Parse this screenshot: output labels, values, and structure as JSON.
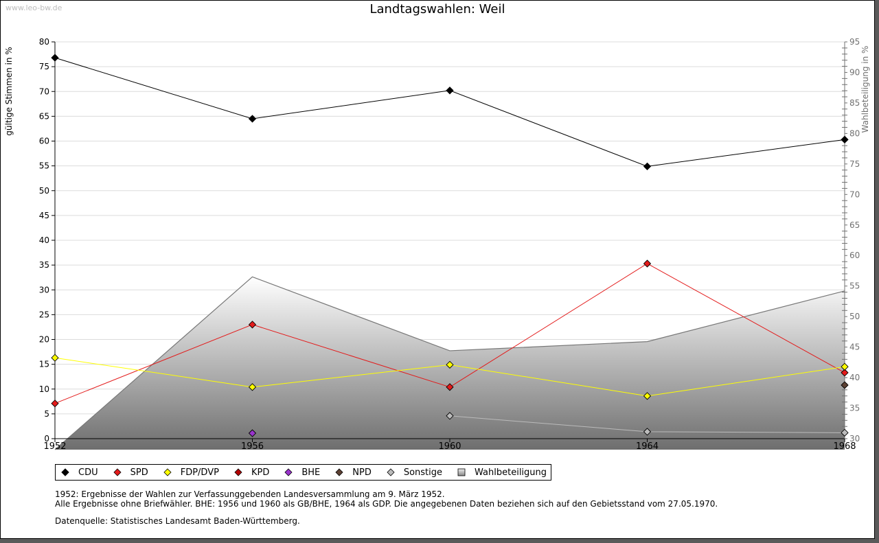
{
  "watermark": "www.leo-bw.de",
  "title": "Landtagswahlen: Weil",
  "legend": [
    {
      "label": "CDU",
      "color": "#000000",
      "shape": "diamond"
    },
    {
      "label": "SPD",
      "color": "#e31a1a",
      "shape": "diamond"
    },
    {
      "label": "FDP/DVP",
      "color": "#ffff00",
      "shape": "diamond"
    },
    {
      "label": "KPD",
      "color": "#b30000",
      "shape": "diamond"
    },
    {
      "label": "BHE",
      "color": "#9933cc",
      "shape": "diamond"
    },
    {
      "label": "NPD",
      "color": "#5c4033",
      "shape": "diamond"
    },
    {
      "label": "Sonstige",
      "color": "#bbbbbb",
      "shape": "diamond"
    },
    {
      "label": "Wahlbeteiligung",
      "color": "#999999",
      "shape": "square"
    }
  ],
  "notes": [
    "1952: Ergebnisse der Wahlen zur Verfassunggebenden Landesversammlung am 9. März 1952.",
    "Alle Ergebnisse ohne Briefwähler. BHE: 1956 und 1960 als GB/BHE, 1964 als GDP. Die angegebenen Daten beziehen sich auf den Gebietsstand vom 27.05.1970."
  ],
  "source": "Datenquelle: Statistisches Landesamt Baden-Württemberg.",
  "chart_data": {
    "type": "line",
    "title": "Landtagswahlen: Weil",
    "x": [
      1952,
      1956,
      1960,
      1964,
      1968
    ],
    "xlabel": "",
    "ylabel": "gültige Stimmen in %",
    "ylabel_right": "Wahlbeteiligung in %",
    "ylim": [
      0,
      80
    ],
    "ylim_right": [
      30,
      95
    ],
    "yticks": [
      0,
      5,
      10,
      15,
      20,
      25,
      30,
      35,
      40,
      45,
      50,
      55,
      60,
      65,
      70,
      75,
      80
    ],
    "yticks_right": [
      30,
      35,
      40,
      45,
      50,
      55,
      60,
      65,
      70,
      75,
      80,
      85,
      90,
      95
    ],
    "xtick_labels": [
      "1952",
      "1956",
      "1960",
      "1964",
      "1968"
    ],
    "ytick_labels": [
      "0",
      "5",
      "10",
      "15",
      "20",
      "25",
      "30",
      "35",
      "40",
      "45",
      "50",
      "55",
      "60",
      "65",
      "70",
      "75",
      "80"
    ],
    "ytick_labels_right": [
      "30",
      "35",
      "40",
      "45",
      "50",
      "55",
      "60",
      "65",
      "70",
      "75",
      "80",
      "85",
      "90",
      "95"
    ],
    "grid": true,
    "legend_position": "bottom",
    "series": [
      {
        "name": "CDU",
        "color": "#000000",
        "values": [
          76.8,
          64.5,
          70.2,
          54.9,
          60.3
        ]
      },
      {
        "name": "SPD",
        "color": "#e31a1a",
        "values": [
          7.1,
          23.0,
          10.4,
          35.3,
          13.3
        ]
      },
      {
        "name": "FDP/DVP",
        "color": "#ffff00",
        "values": [
          16.3,
          10.4,
          14.9,
          8.6,
          14.5
        ]
      },
      {
        "name": "KPD",
        "color": "#b30000",
        "values": [
          null,
          null,
          null,
          null,
          null
        ]
      },
      {
        "name": "BHE",
        "color": "#9933cc",
        "values": [
          null,
          1.1,
          null,
          null,
          null
        ]
      },
      {
        "name": "NPD",
        "color": "#5c4033",
        "values": [
          null,
          null,
          null,
          null,
          10.8
        ]
      },
      {
        "name": "Sonstige",
        "color": "#bbbbbb",
        "values": [
          null,
          null,
          4.6,
          1.4,
          1.2
        ]
      },
      {
        "name": "Wahlbeteiligung",
        "color": "#777777",
        "axis": "right",
        "type": "area",
        "values": [
          28.2,
          56.5,
          44.4,
          45.9,
          54.2
        ]
      }
    ]
  }
}
